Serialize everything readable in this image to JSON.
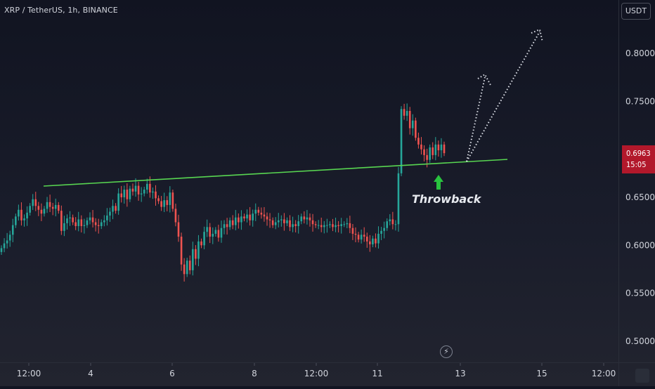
{
  "header": {
    "symbol": "XRP / TetherUS, 1h, BINANCE"
  },
  "currency": "USDT",
  "last_price": {
    "value": "0.6963",
    "countdown": "15:05"
  },
  "annotation": {
    "label": "Throwback"
  },
  "colors": {
    "up": "#26a69a",
    "down": "#ef5350",
    "trendline": "#58d651",
    "arrow": "#29c33f",
    "projection": "#e0e3eb",
    "badge": "#b2182b"
  },
  "icons": {
    "bolt": "lightning-bolt-icon"
  },
  "chart_data": {
    "type": "candlestick",
    "title": "",
    "xlabel": "",
    "ylabel": "",
    "x_ticks": [
      "12:00",
      "4",
      "6",
      "8",
      "12:00",
      "11",
      "13",
      "15",
      "12:00"
    ],
    "y_ticks": [
      "0.5000",
      "0.5500",
      "0.6000",
      "0.6500",
      "0.7000",
      "0.7500",
      "0.8000"
    ],
    "y_range": [
      0.475,
      0.83
    ],
    "trendline": {
      "start": [
        "x0",
        0.659
      ],
      "end": [
        "x1",
        0.686
      ]
    },
    "series_close": [
      0.597,
      0.602,
      0.605,
      0.611,
      0.621,
      0.63,
      0.637,
      0.626,
      0.628,
      0.634,
      0.641,
      0.648,
      0.641,
      0.637,
      0.633,
      0.638,
      0.645,
      0.64,
      0.638,
      0.642,
      0.636,
      0.615,
      0.623,
      0.628,
      0.629,
      0.624,
      0.62,
      0.627,
      0.62,
      0.621,
      0.626,
      0.629,
      0.624,
      0.621,
      0.62,
      0.624,
      0.626,
      0.631,
      0.635,
      0.641,
      0.636,
      0.654,
      0.65,
      0.658,
      0.648,
      0.659,
      0.656,
      0.662,
      0.653,
      0.654,
      0.658,
      0.664,
      0.655,
      0.656,
      0.649,
      0.646,
      0.64,
      0.647,
      0.642,
      0.655,
      0.638,
      0.624,
      0.609,
      0.58,
      0.57,
      0.584,
      0.574,
      0.596,
      0.586,
      0.604,
      0.6,
      0.614,
      0.619,
      0.609,
      0.612,
      0.616,
      0.608,
      0.618,
      0.622,
      0.619,
      0.626,
      0.621,
      0.629,
      0.624,
      0.63,
      0.628,
      0.632,
      0.626,
      0.633,
      0.637,
      0.634,
      0.632,
      0.63,
      0.627,
      0.626,
      0.621,
      0.624,
      0.626,
      0.627,
      0.623,
      0.626,
      0.619,
      0.622,
      0.62,
      0.625,
      0.63,
      0.627,
      0.629,
      0.626,
      0.622,
      0.621,
      0.621,
      0.619,
      0.621,
      0.621,
      0.622,
      0.619,
      0.621,
      0.62,
      0.622,
      0.622,
      0.623,
      0.618,
      0.612,
      0.611,
      0.606,
      0.611,
      0.609,
      0.604,
      0.601,
      0.607,
      0.602,
      0.612,
      0.615,
      0.618,
      0.625,
      0.627,
      0.622,
      0.622,
      0.675,
      0.742,
      0.735,
      0.74,
      0.722,
      0.73,
      0.712,
      0.705,
      0.7,
      0.694,
      0.689,
      0.702,
      0.694,
      0.705,
      0.699,
      0.705,
      0.696
    ]
  }
}
